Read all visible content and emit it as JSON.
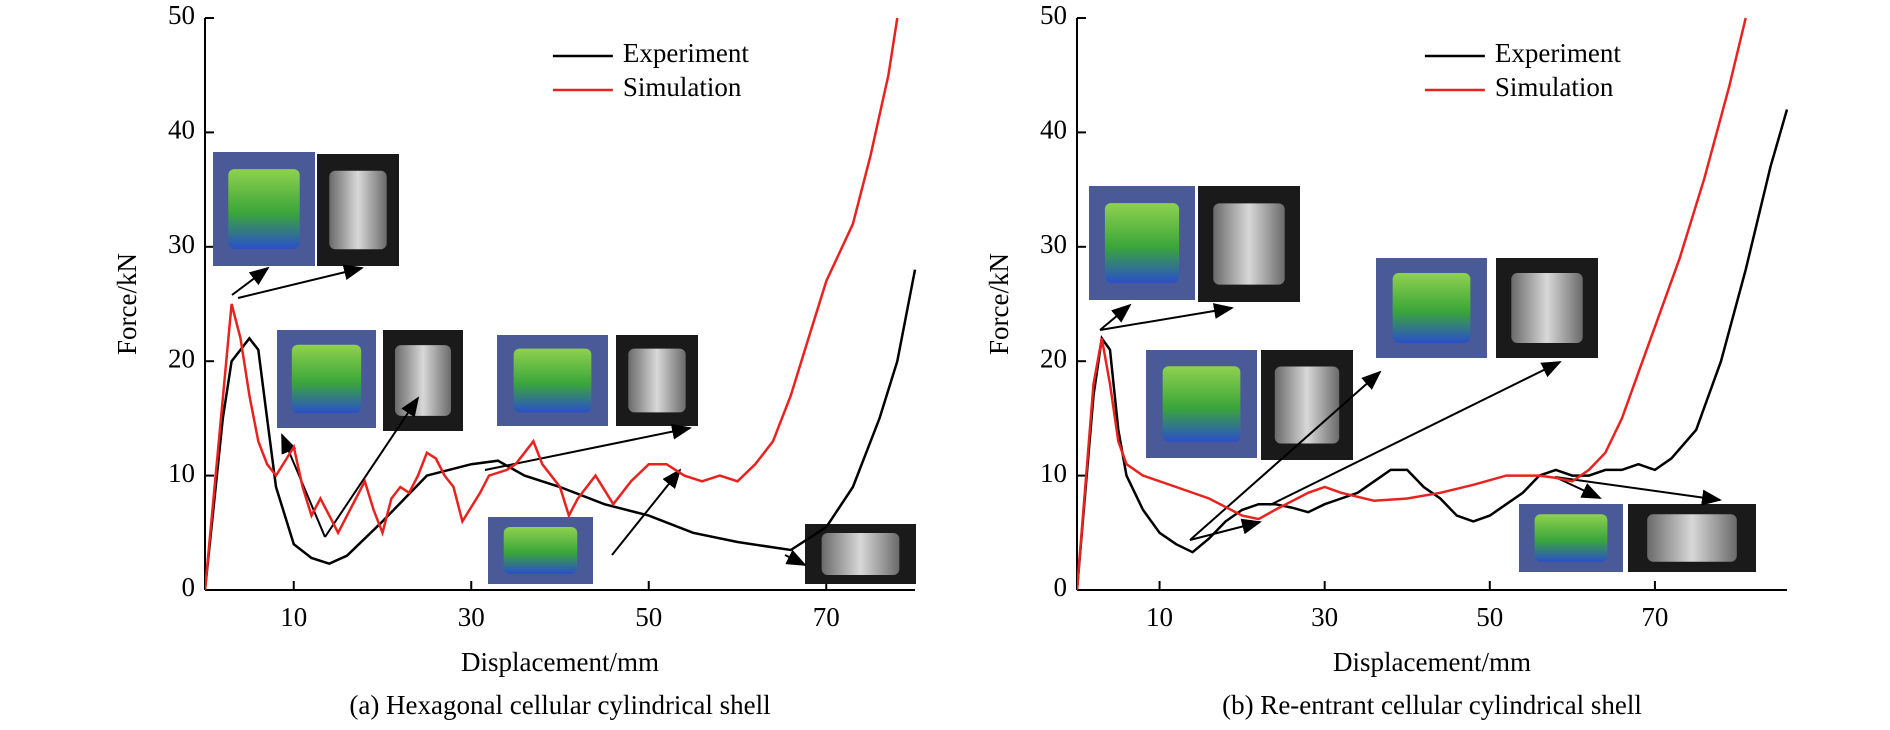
{
  "chart_data": [
    {
      "type": "line",
      "caption": "(a) Hexagonal cellular cylindrical shell",
      "xlabel": "Displacement/mm",
      "ylabel": "Force/kN",
      "xlim": [
        0,
        80
      ],
      "ylim": [
        0,
        50
      ],
      "xticks": [
        10,
        30,
        50,
        70
      ],
      "yticks": [
        0,
        10,
        20,
        30,
        40,
        50
      ],
      "legend": "upper center",
      "series": [
        {
          "name": "Experiment",
          "color": "#000000",
          "x": [
            0,
            2,
            3,
            5,
            6,
            7,
            8,
            10,
            12,
            14,
            16,
            20,
            25,
            30,
            33,
            36,
            40,
            45,
            50,
            55,
            60,
            66,
            70,
            73,
            76,
            78,
            80
          ],
          "values": [
            0,
            15,
            20,
            22,
            21,
            15,
            9,
            4,
            2.8,
            2.3,
            3,
            6,
            10,
            11,
            11.3,
            10,
            9,
            7.5,
            6.5,
            5,
            4.2,
            3.5,
            5.5,
            9,
            15,
            20,
            28
          ]
        },
        {
          "name": "Simulation",
          "color": "#e8231f",
          "x": [
            0,
            3,
            4,
            5,
            6,
            7,
            8,
            10,
            11,
            12,
            13,
            14,
            15,
            17,
            18,
            19,
            20,
            21,
            22,
            23,
            24,
            25,
            26,
            27,
            28,
            29,
            31,
            32,
            34,
            35,
            37,
            38,
            40,
            41,
            42,
            44,
            46,
            48,
            50,
            52,
            54,
            56,
            58,
            60,
            62,
            64,
            66,
            68,
            70,
            73,
            75,
            77,
            78
          ],
          "values": [
            0,
            25,
            22,
            17,
            13,
            11,
            10,
            12.5,
            9,
            6.5,
            8,
            6.5,
            5,
            8,
            9.5,
            7,
            5,
            8,
            9,
            8.5,
            10,
            12,
            11.5,
            10,
            9,
            6,
            8.5,
            10,
            10.5,
            11,
            13,
            11,
            9,
            6.5,
            8,
            10,
            7.5,
            9.5,
            11,
            11,
            10,
            9.5,
            10,
            9.5,
            11,
            13,
            17,
            22,
            27,
            32,
            38,
            45,
            50
          ]
        }
      ]
    },
    {
      "type": "line",
      "caption": "(b) Re-entrant cellular cylindrical shell",
      "xlabel": "Displacement/mm",
      "ylabel": "Force/kN",
      "xlim": [
        0,
        86
      ],
      "ylim": [
        0,
        50
      ],
      "xticks": [
        10,
        30,
        50,
        70
      ],
      "yticks": [
        0,
        10,
        20,
        30,
        40,
        50
      ],
      "legend": "upper center",
      "series": [
        {
          "name": "Experiment",
          "color": "#000000",
          "x": [
            0,
            2,
            3,
            4,
            5,
            6,
            8,
            10,
            12,
            14,
            16,
            18,
            20,
            22,
            24,
            26,
            28,
            30,
            32,
            34,
            36,
            38,
            40,
            42,
            44,
            46,
            48,
            50,
            52,
            54,
            56,
            58,
            60,
            62,
            64,
            66,
            68,
            70,
            72,
            75,
            78,
            81,
            84,
            86
          ],
          "values": [
            0,
            17,
            22,
            21,
            14,
            10,
            7,
            5,
            4,
            3.3,
            4.5,
            6,
            7,
            7.5,
            7.5,
            7.2,
            6.8,
            7.5,
            8,
            8.5,
            9.5,
            10.5,
            10.5,
            9,
            8,
            6.5,
            6,
            6.5,
            7.5,
            8.5,
            10,
            10.5,
            10,
            10,
            10.5,
            10.5,
            11,
            10.5,
            11.5,
            14,
            20,
            28,
            37,
            42
          ]
        },
        {
          "name": "Simulation",
          "color": "#e8231f",
          "x": [
            0,
            2,
            3,
            4,
            5,
            6,
            8,
            12,
            16,
            20,
            22,
            24,
            28,
            30,
            32,
            36,
            40,
            44,
            48,
            52,
            56,
            58,
            60,
            62,
            64,
            66,
            68,
            70,
            73,
            76,
            79,
            81
          ],
          "values": [
            0,
            18,
            22,
            18,
            13,
            11,
            10,
            9,
            8,
            6.5,
            6.2,
            7,
            8.5,
            9,
            8.5,
            7.8,
            8,
            8.5,
            9.2,
            10,
            10,
            9.8,
            9.5,
            10.5,
            12,
            15,
            19,
            23,
            29,
            36,
            44,
            50
          ]
        }
      ]
    }
  ]
}
